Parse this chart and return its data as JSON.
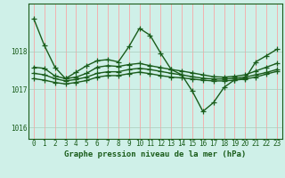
{
  "title": "Graphe pression niveau de la mer (hPa)",
  "bg_color": "#cff0e8",
  "grid_color_v": "#ff9999",
  "grid_color_h": "#aaccbb",
  "line_color": "#1a5c1a",
  "x_ticks": [
    0,
    1,
    2,
    3,
    4,
    5,
    6,
    7,
    8,
    9,
    10,
    11,
    12,
    13,
    14,
    15,
    16,
    17,
    18,
    19,
    20,
    21,
    22,
    23
  ],
  "ylim": [
    1015.7,
    1019.25
  ],
  "yticks": [
    1016,
    1017,
    1018
  ],
  "series": [
    [
      1018.85,
      1018.15,
      1017.58,
      1017.28,
      1017.45,
      1017.62,
      1017.75,
      1017.78,
      1017.72,
      1018.12,
      1018.6,
      1018.42,
      1017.95,
      1017.52,
      1017.38,
      1016.95,
      1016.42,
      1016.65,
      1017.05,
      1017.25,
      1017.28,
      1017.72,
      1017.88,
      1018.05
    ],
    [
      1017.58,
      1017.55,
      1017.35,
      1017.28,
      1017.32,
      1017.42,
      1017.58,
      1017.62,
      1017.6,
      1017.65,
      1017.68,
      1017.62,
      1017.57,
      1017.52,
      1017.48,
      1017.43,
      1017.38,
      1017.33,
      1017.32,
      1017.34,
      1017.38,
      1017.48,
      1017.58,
      1017.68
    ],
    [
      1017.42,
      1017.38,
      1017.28,
      1017.22,
      1017.26,
      1017.32,
      1017.42,
      1017.46,
      1017.46,
      1017.52,
      1017.55,
      1017.52,
      1017.47,
      1017.42,
      1017.38,
      1017.33,
      1017.29,
      1017.27,
      1017.27,
      1017.29,
      1017.32,
      1017.38,
      1017.44,
      1017.52
    ],
    [
      1017.28,
      1017.24,
      1017.18,
      1017.14,
      1017.18,
      1017.23,
      1017.32,
      1017.36,
      1017.36,
      1017.41,
      1017.45,
      1017.41,
      1017.36,
      1017.32,
      1017.3,
      1017.27,
      1017.24,
      1017.22,
      1017.22,
      1017.24,
      1017.27,
      1017.32,
      1017.4,
      1017.47
    ]
  ],
  "marker": "+",
  "markersize": 4,
  "linewidth": 1.0,
  "label_fontsize": 6.5,
  "tick_fontsize": 5.5
}
